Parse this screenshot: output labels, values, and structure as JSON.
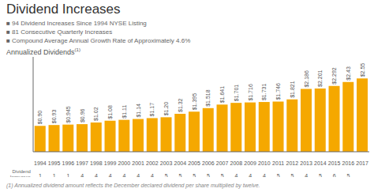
{
  "chart_data": {
    "type": "bar",
    "title": "Dividend Increases",
    "bullet_points": [
      "■ 94 Dividend Increases Since 1994 NYSE Listing",
      "■ 81 Consecutive Quarterly Increases",
      "■ Compound Average Annual Growth Rate of Approximately 4.6%"
    ],
    "y_label": "Annualized Dividends",
    "y_label_note": "(1)",
    "categories": [
      "1994",
      "1995",
      "1996",
      "1997",
      "1998",
      "1999",
      "2000",
      "2001",
      "2002",
      "2003",
      "2004",
      "2005",
      "2006",
      "2007",
      "2008",
      "2009",
      "2010",
      "2011",
      "2012",
      "2013",
      "2014",
      "2015",
      "2016",
      "2017"
    ],
    "values": [
      0.9,
      0.93,
      0.945,
      0.96,
      1.02,
      1.08,
      1.11,
      1.14,
      1.17,
      1.2,
      1.32,
      1.395,
      1.518,
      1.641,
      1.701,
      1.716,
      1.731,
      1.746,
      1.821,
      2.186,
      2.201,
      2.292,
      2.43,
      2.55
    ],
    "value_labels": [
      "$0.90",
      "$0.93",
      "$0.945",
      "$0.96",
      "$1.02",
      "$1.08",
      "$1.11",
      "$1.14",
      "$1.17",
      "$1.20",
      "$1.32",
      "$1.395",
      "$1.518",
      "$1.641",
      "$1.701",
      "$1.716",
      "$1.731",
      "$1.746",
      "$1.821",
      "$2.186",
      "$2.201",
      "$2.292",
      "$2.43",
      "$2.55"
    ],
    "data_labels": true,
    "color": "#F5A800",
    "ylim": [
      0,
      3.3
    ],
    "tick_labels": "x",
    "grid": false,
    "row_label": "Dividend\nIncreases",
    "row_values": [
      1,
      1,
      1,
      4,
      4,
      4,
      4,
      4,
      4,
      5,
      5,
      5,
      5,
      5,
      4,
      4,
      4,
      5,
      5,
      4,
      5,
      6,
      5,
      null
    ],
    "footnote": "(1) Annualized dividend amount reflects the December declared dividend per share multiplied by twelve."
  }
}
